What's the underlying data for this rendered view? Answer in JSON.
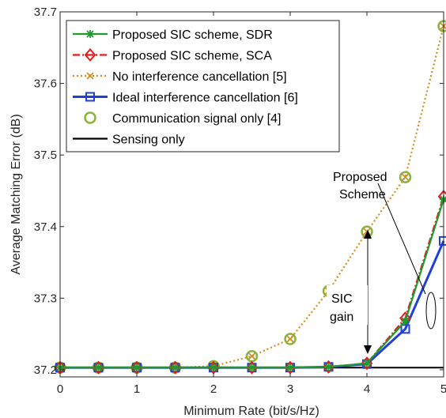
{
  "chart_data": {
    "type": "line",
    "title": "",
    "xlabel": "Minimum Rate (bit/s/Hz)",
    "ylabel": "Average Matching Error (dB)",
    "xlim": [
      0,
      5
    ],
    "ylim": [
      37.19,
      37.7
    ],
    "xticks": [
      "0",
      "1",
      "2",
      "3",
      "4",
      "5"
    ],
    "yticks": [
      "37.2",
      "37.3",
      "37.4",
      "37.5",
      "37.6",
      "37.7"
    ],
    "grid": false,
    "legend_position": "top-left",
    "x": [
      0,
      0.5,
      1,
      1.5,
      2,
      2.5,
      3,
      3.5,
      4,
      4.5,
      5
    ],
    "series": [
      {
        "name": "Proposed SIC scheme, SDR",
        "color": "#1e9a2e",
        "marker": "star",
        "style": "solid",
        "values": [
          37.203,
          37.203,
          37.203,
          37.203,
          37.203,
          37.203,
          37.203,
          37.204,
          37.209,
          37.268,
          37.438
        ]
      },
      {
        "name": "Proposed SIC scheme, SCA",
        "color": "#e41a1c",
        "marker": "diamond",
        "style": "dashdot",
        "values": [
          37.203,
          37.203,
          37.203,
          37.203,
          37.203,
          37.203,
          37.203,
          37.204,
          37.209,
          37.272,
          37.442
        ]
      },
      {
        "name": "No interference cancellation [5]",
        "color": "#d98c1f",
        "marker": "x",
        "style": "dotted",
        "values": [
          37.203,
          37.203,
          37.203,
          37.203,
          37.205,
          37.219,
          37.243,
          37.31,
          37.393,
          37.469,
          37.68
        ]
      },
      {
        "name": "Ideal interference cancellation [6]",
        "color": "#1f3fd8",
        "marker": "square",
        "style": "solid",
        "values": [
          37.203,
          37.203,
          37.203,
          37.203,
          37.203,
          37.203,
          37.203,
          37.204,
          37.208,
          37.257,
          37.38
        ]
      },
      {
        "name": "Communication signal only [4]",
        "color": "#8cb43c",
        "marker": "circle",
        "style": "none",
        "values": [
          37.203,
          37.203,
          37.203,
          37.203,
          37.205,
          37.219,
          37.243,
          37.31,
          37.393,
          37.469,
          37.68
        ]
      },
      {
        "name": "Sensing only",
        "color": "#000000",
        "marker": "none",
        "style": "solid",
        "values": [
          37.203,
          37.203,
          37.203,
          37.203,
          37.203,
          37.203,
          37.203,
          37.203,
          37.203,
          37.203,
          37.203
        ]
      }
    ],
    "annotations": {
      "proposed_line1": "Proposed",
      "proposed_line2": "Scheme",
      "sic_line1": "SIC",
      "sic_line2": "gain"
    }
  }
}
